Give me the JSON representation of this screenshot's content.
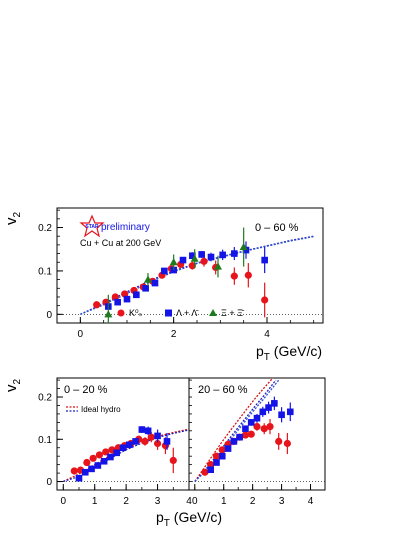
{
  "colors": {
    "k0s": "#e8141b",
    "lambda": "#1414e6",
    "xi": "#1e7a1e",
    "hydro_red": "#d21414",
    "hydro_blue": "#2020c0",
    "axis": "#000000"
  },
  "chart_data": [
    {
      "id": "top",
      "type": "scatter",
      "ylabel": "v",
      "ylabel_sub": "2",
      "xlabel": "p",
      "xlabel_sub": "T",
      "xlabel_unit": " (GeV/c)",
      "xlim": [
        -0.5,
        5.2
      ],
      "ylim": [
        -0.02,
        0.245
      ],
      "x_ticks": [
        "0",
        "2",
        "4"
      ],
      "y_ticks": [
        "0",
        "0.1",
        "0.2"
      ],
      "grid": false,
      "annotations": {
        "centrality": "0 – 60 %",
        "preliminary": "preliminary",
        "logo": "STAR",
        "system": "Cu + Cu at 200 GeV"
      },
      "legend": {
        "placement": "bottom",
        "entries": [
          "K⁰ₛ",
          "Λ + Λ̄",
          "Ξ + Ξ̄"
        ]
      },
      "series": [
        {
          "name": "K⁰ₛ",
          "marker": "circle",
          "color": "#e8141b",
          "x": [
            0.35,
            0.55,
            0.75,
            0.95,
            1.15,
            1.35,
            1.55,
            1.75,
            1.95,
            2.15,
            2.4,
            2.65,
            2.9,
            3.3,
            3.6,
            3.95
          ],
          "y": [
            0.022,
            0.028,
            0.04,
            0.047,
            0.055,
            0.063,
            0.076,
            0.09,
            0.105,
            0.115,
            0.112,
            0.122,
            0.108,
            0.088,
            0.09,
            0.033
          ],
          "err": [
            0.003,
            0.003,
            0.003,
            0.003,
            0.003,
            0.004,
            0.004,
            0.005,
            0.006,
            0.007,
            0.009,
            0.012,
            0.016,
            0.02,
            0.028,
            0.04
          ]
        },
        {
          "name": "Λ + Λ̄",
          "marker": "square",
          "color": "#1414e6",
          "x": [
            0.6,
            0.8,
            1.0,
            1.2,
            1.4,
            1.6,
            1.8,
            2.0,
            2.2,
            2.4,
            2.6,
            2.8,
            3.05,
            3.3,
            3.55,
            3.95
          ],
          "y": [
            0.018,
            0.028,
            0.035,
            0.045,
            0.06,
            0.072,
            0.1,
            0.102,
            0.125,
            0.135,
            0.138,
            0.132,
            0.137,
            0.14,
            0.148,
            0.125
          ],
          "err": [
            0.003,
            0.003,
            0.003,
            0.003,
            0.004,
            0.004,
            0.005,
            0.006,
            0.007,
            0.008,
            0.008,
            0.01,
            0.012,
            0.015,
            0.02,
            0.03
          ]
        },
        {
          "name": "Ξ + Ξ̄",
          "marker": "triangle",
          "color": "#1e7a1e",
          "x": [
            0.6,
            1.45,
            2.0,
            2.45,
            2.95,
            3.5
          ],
          "y": [
            0.0,
            0.08,
            0.12,
            0.128,
            0.11,
            0.155
          ],
          "err": [
            0.045,
            0.015,
            0.018,
            0.022,
            0.025,
            0.045
          ]
        }
      ],
      "hydro_curves": [
        {
          "color": "#2020c0",
          "x": [
            0.0,
            0.5,
            1.0,
            1.5,
            2.0,
            2.5,
            3.0,
            3.5,
            4.0,
            4.5,
            5.0
          ],
          "y": [
            0.0,
            0.025,
            0.052,
            0.078,
            0.1,
            0.118,
            0.132,
            0.146,
            0.158,
            0.17,
            0.18
          ]
        },
        {
          "color": "#3050d0",
          "x": [
            0.0,
            0.5,
            1.0,
            1.5,
            2.0,
            2.5,
            3.0,
            3.5,
            4.0,
            4.5,
            5.0
          ],
          "y": [
            0.0,
            0.022,
            0.048,
            0.075,
            0.098,
            0.117,
            0.131,
            0.145,
            0.157,
            0.169,
            0.179
          ]
        }
      ]
    },
    {
      "id": "bottom-left",
      "type": "scatter",
      "ylabel": "v",
      "ylabel_sub": "2",
      "xlim": [
        -0.2,
        4.0
      ],
      "ylim": [
        -0.02,
        0.245
      ],
      "x_ticks": [
        "0",
        "1",
        "2",
        "3",
        "4"
      ],
      "y_ticks": [
        "0",
        "0.1",
        "0.2"
      ],
      "grid": false,
      "annotations": {
        "centrality": "0 – 20 %"
      },
      "legend": {
        "placement": "top-left",
        "entries": [
          "Ideal hydro"
        ]
      },
      "series": [
        {
          "name": "K⁰ₛ",
          "marker": "circle",
          "color": "#e8141b",
          "x": [
            0.35,
            0.55,
            0.75,
            0.95,
            1.15,
            1.35,
            1.55,
            1.75,
            1.95,
            2.15,
            2.4,
            2.6,
            2.8,
            3.0,
            3.25,
            3.5
          ],
          "y": [
            0.025,
            0.027,
            0.045,
            0.055,
            0.063,
            0.07,
            0.075,
            0.08,
            0.085,
            0.09,
            0.1,
            0.095,
            0.105,
            0.09,
            0.085,
            0.05
          ],
          "err": [
            0.003,
            0.003,
            0.003,
            0.003,
            0.004,
            0.004,
            0.005,
            0.005,
            0.006,
            0.007,
            0.008,
            0.01,
            0.012,
            0.015,
            0.02,
            0.03
          ]
        },
        {
          "name": "Λ + Λ̄",
          "marker": "square",
          "color": "#1414e6",
          "x": [
            0.5,
            0.7,
            0.9,
            1.1,
            1.3,
            1.5,
            1.7,
            1.9,
            2.1,
            2.3,
            2.5,
            2.7,
            3.0,
            3.3
          ],
          "y": [
            0.008,
            0.022,
            0.03,
            0.038,
            0.048,
            0.058,
            0.068,
            0.08,
            0.087,
            0.095,
            0.123,
            0.12,
            0.108,
            0.095
          ],
          "err": [
            0.003,
            0.003,
            0.003,
            0.003,
            0.004,
            0.004,
            0.005,
            0.005,
            0.006,
            0.007,
            0.008,
            0.01,
            0.015,
            0.02
          ]
        }
      ],
      "hydro_curves": [
        {
          "color": "#d21414",
          "x": [
            0.0,
            0.5,
            1.0,
            1.5,
            2.0,
            2.5,
            3.0,
            3.5,
            4.0
          ],
          "y": [
            0.0,
            0.018,
            0.04,
            0.062,
            0.08,
            0.095,
            0.107,
            0.116,
            0.124
          ]
        },
        {
          "color": "#2020c0",
          "x": [
            0.0,
            0.5,
            1.0,
            1.5,
            2.0,
            2.5,
            3.0,
            3.5,
            4.0
          ],
          "y": [
            0.0,
            0.012,
            0.032,
            0.055,
            0.075,
            0.091,
            0.104,
            0.114,
            0.122
          ]
        }
      ]
    },
    {
      "id": "bottom-right",
      "type": "scatter",
      "xlabel": "p",
      "xlabel_sub": "T",
      "xlabel_unit": " (GeV/c)",
      "xlim": [
        -0.2,
        4.5
      ],
      "ylim": [
        -0.02,
        0.245
      ],
      "x_ticks": [
        "0",
        "1",
        "2",
        "3",
        "4"
      ],
      "grid": false,
      "annotations": {
        "centrality": "20 – 60 %"
      },
      "series": [
        {
          "name": "K⁰ₛ",
          "marker": "circle",
          "color": "#e8141b",
          "x": [
            0.35,
            0.55,
            0.75,
            0.95,
            1.15,
            1.35,
            1.55,
            1.75,
            1.95,
            2.15,
            2.4,
            2.6,
            2.9,
            3.2
          ],
          "y": [
            0.022,
            0.04,
            0.06,
            0.075,
            0.088,
            0.095,
            0.105,
            0.11,
            0.112,
            0.13,
            0.125,
            0.13,
            0.095,
            0.09
          ],
          "err": [
            0.003,
            0.003,
            0.003,
            0.004,
            0.004,
            0.005,
            0.006,
            0.007,
            0.008,
            0.01,
            0.013,
            0.018,
            0.02,
            0.025
          ]
        },
        {
          "name": "Λ + Λ̄",
          "marker": "square",
          "color": "#1414e6",
          "x": [
            0.55,
            0.75,
            0.95,
            1.15,
            1.35,
            1.55,
            1.75,
            1.95,
            2.15,
            2.35,
            2.55,
            2.75,
            3.0,
            3.3
          ],
          "y": [
            0.028,
            0.045,
            0.06,
            0.078,
            0.095,
            0.105,
            0.125,
            0.14,
            0.15,
            0.165,
            0.175,
            0.185,
            0.158,
            0.165
          ],
          "err": [
            0.003,
            0.003,
            0.004,
            0.004,
            0.005,
            0.005,
            0.006,
            0.008,
            0.01,
            0.012,
            0.014,
            0.016,
            0.018,
            0.022
          ]
        }
      ],
      "hydro_curves": [
        {
          "color": "#d21414",
          "x": [
            0.0,
            0.3,
            0.6,
            0.9,
            1.2,
            1.5,
            1.8,
            2.1,
            2.4,
            2.7
          ],
          "y": [
            0.0,
            0.03,
            0.06,
            0.09,
            0.118,
            0.145,
            0.172,
            0.198,
            0.222,
            0.245
          ]
        },
        {
          "color": "#2020c0",
          "x": [
            0.0,
            0.3,
            0.6,
            0.9,
            1.2,
            1.5,
            1.8,
            2.1,
            2.4,
            2.8
          ],
          "y": [
            0.0,
            0.022,
            0.048,
            0.075,
            0.102,
            0.128,
            0.154,
            0.18,
            0.204,
            0.24
          ]
        },
        {
          "color": "#3050d0",
          "x": [
            0.0,
            0.3,
            0.6,
            0.9,
            1.2,
            1.5,
            1.8,
            2.1,
            2.4,
            2.9
          ],
          "y": [
            0.0,
            0.02,
            0.044,
            0.07,
            0.096,
            0.122,
            0.148,
            0.173,
            0.197,
            0.24
          ]
        }
      ]
    }
  ]
}
